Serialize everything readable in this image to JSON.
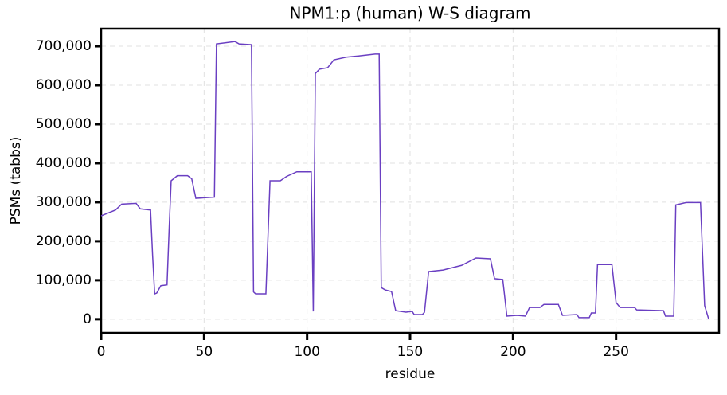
{
  "chart_data": {
    "type": "line",
    "title": "NPM1:p (human) W-S diagram",
    "x_label": "residue",
    "y_label": "PSMs (tabbs)",
    "x": [
      0,
      7,
      10,
      17,
      19,
      24,
      25,
      26,
      27,
      29,
      32,
      33,
      34,
      37,
      42,
      44,
      46,
      55,
      56,
      65,
      67,
      73,
      74,
      75,
      80,
      82,
      87,
      90,
      95,
      102,
      103,
      104,
      106,
      110,
      113,
      119,
      125,
      133,
      135,
      136,
      138,
      141,
      143,
      148,
      151,
      152,
      156,
      157,
      159,
      166,
      175,
      182,
      189,
      191,
      195,
      197,
      202,
      206,
      208,
      213,
      215,
      222,
      224,
      231,
      232,
      237,
      238,
      240,
      241,
      248,
      250,
      252,
      259,
      260,
      273,
      274,
      278,
      279,
      284,
      291,
      292,
      293,
      295
    ],
    "series": [
      {
        "name": "PSMs",
        "color": "#6a3fc2",
        "values": [
          265000,
          280000,
          295000,
          297000,
          283000,
          280000,
          163000,
          65000,
          67000,
          86000,
          88000,
          228000,
          355000,
          368000,
          368000,
          360000,
          310000,
          313000,
          706000,
          712000,
          706000,
          704000,
          70000,
          65000,
          65000,
          355000,
          355000,
          366000,
          378000,
          378000,
          20000,
          630000,
          641000,
          645000,
          665000,
          672000,
          675000,
          680000,
          680000,
          81000,
          75000,
          71000,
          22000,
          18000,
          20000,
          12000,
          12000,
          18000,
          122000,
          126000,
          138000,
          157000,
          155000,
          104000,
          102000,
          8000,
          10000,
          8000,
          30000,
          30000,
          38000,
          38000,
          10000,
          12000,
          4000,
          4000,
          16000,
          16000,
          140000,
          140000,
          43000,
          30000,
          30000,
          24000,
          22000,
          8000,
          8000,
          293000,
          299000,
          299000,
          167000,
          35000,
          0
        ]
      }
    ],
    "xlim": [
      0,
      300
    ],
    "xticks": [
      0,
      50,
      100,
      150,
      200,
      250
    ],
    "ylim": [
      -35000,
      745000
    ],
    "yticks": [
      0,
      {
        "value": 100000,
        "label": "100,000"
      },
      {
        "value": 200000,
        "label": "200,000"
      },
      {
        "value": 300000,
        "label": "300,000"
      },
      {
        "value": 400000,
        "label": "400,000"
      },
      {
        "value": 500000,
        "label": "500,000"
      },
      {
        "value": 600000,
        "label": "600,000"
      },
      {
        "value": 700000,
        "label": "700,000"
      }
    ],
    "grid": true
  }
}
